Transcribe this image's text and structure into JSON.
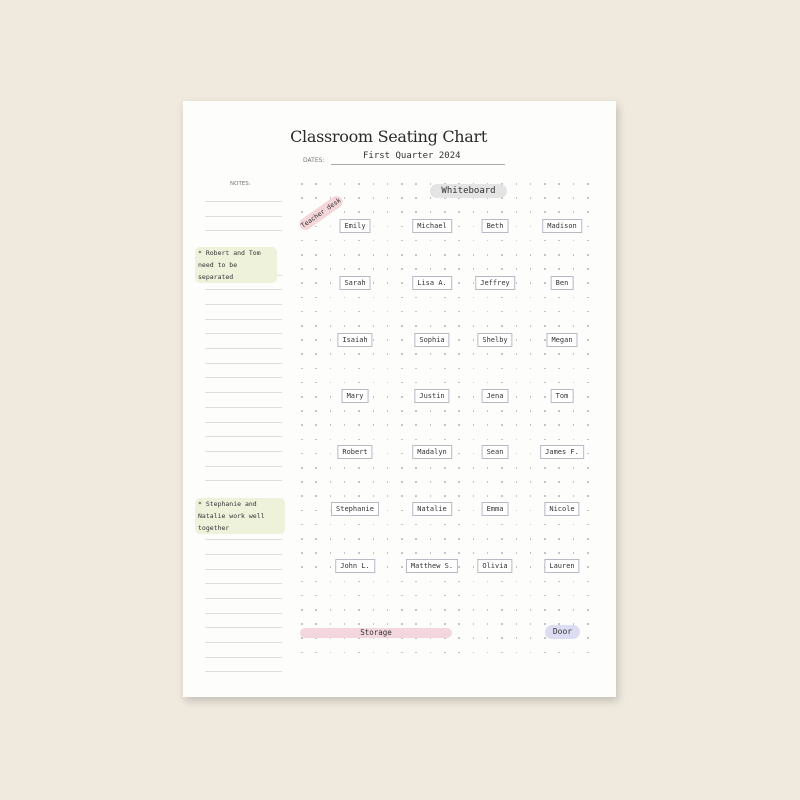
{
  "title": "Classroom Seating Chart",
  "dates_label": "DATES:",
  "dates_value": "First Quarter 2024",
  "notes_label": "NOTES:",
  "notes": [
    "* Robert and Tom need to be separated",
    "* Stephanie and Natalie work well together"
  ],
  "landmarks": {
    "whiteboard": "Whiteboard",
    "teacher_desk": "Teacher desk",
    "storage": "Storage",
    "door": "Door"
  },
  "colors": {
    "background": "#efe9de",
    "note_highlight": "#eef2db",
    "teacher_desk": "#f4d6d8",
    "storage": "#f4d6df",
    "door": "#dcdcf3",
    "whiteboard": "#e4e4e4"
  },
  "seats": [
    [
      "Emily",
      "Michael",
      "Beth",
      "Madison"
    ],
    [
      "Sarah",
      "Lisa A.",
      "Jeffrey",
      "Ben"
    ],
    [
      "Isaiah",
      "Sophia",
      "Shelby",
      "Megan"
    ],
    [
      "Mary",
      "Justin",
      "Jena",
      "Tom"
    ],
    [
      "Robert",
      "Madalyn",
      "Sean",
      "James F."
    ],
    [
      "Stephanie",
      "Natalie",
      "Emma",
      "Nicole"
    ],
    [
      "John L.",
      "Matthew S.",
      "Olivia",
      "Lauren"
    ]
  ]
}
